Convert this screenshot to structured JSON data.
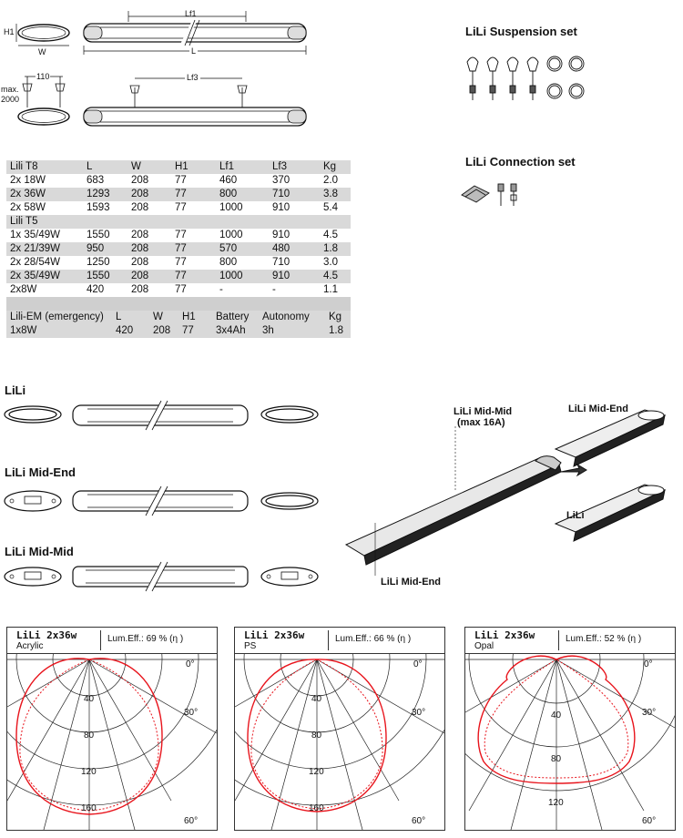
{
  "dimensions": {
    "h1": "H1",
    "w": "W",
    "lf1": "Lf1",
    "l": "L",
    "lf3": "Lf3",
    "spacing": "110",
    "max_label": "max.",
    "max_value": "2000"
  },
  "suspension_set": {
    "title": "LiLi Suspension set"
  },
  "connection_set": {
    "title": "LiLi Connection set"
  },
  "table": {
    "t8_header": [
      "Lili T8",
      "L",
      "W",
      "H1",
      "Lf1",
      "Lf3",
      "Kg"
    ],
    "t8_rows": [
      [
        "2x 18W",
        "683",
        "208",
        "77",
        "460",
        "370",
        "2.0"
      ],
      [
        "2x 36W",
        "1293",
        "208",
        "77",
        "800",
        "710",
        "3.8"
      ],
      [
        "2x 58W",
        "1593",
        "208",
        "77",
        "1000",
        "910",
        "5.4"
      ]
    ],
    "t5_header": "Lili T5",
    "t5_rows": [
      [
        "1x 35/49W",
        "1550",
        "208",
        "77",
        "1000",
        "910",
        "4.5"
      ],
      [
        "2x 21/39W",
        "950",
        "208",
        "77",
        "570",
        "480",
        "1.8"
      ],
      [
        "2x 28/54W",
        "1250",
        "208",
        "77",
        "800",
        "710",
        "3.0"
      ],
      [
        "2x 35/49W",
        "1550",
        "208",
        "77",
        "1000",
        "910",
        "4.5"
      ],
      [
        "2x8W",
        "420",
        "208",
        "77",
        "-",
        "-",
        "1.1"
      ]
    ],
    "em_header": [
      "Lili-EM (emergency)",
      "L",
      "W",
      "H1",
      "Battery",
      "Autonomy",
      "Kg"
    ],
    "em_row": [
      "1x8W",
      "420",
      "208",
      "77",
      "3x4Ah",
      "3h",
      "1.8"
    ]
  },
  "variants": {
    "lili": "LiLi",
    "mid_end": "LiLi Mid-End",
    "mid_mid": "LiLi Mid-Mid"
  },
  "assembly": {
    "mid_mid_label": "LiLi Mid-Mid",
    "mid_mid_note": "(max 16A)",
    "mid_end_top": "LiLi Mid-End",
    "lili": "LiLi",
    "mid_end_bottom": "LiLi Mid-End"
  },
  "photometry": [
    {
      "name": "LiLi 2x36w",
      "material": "Acrylic",
      "efficiency": "Lum.Eff.: 69 % (η )",
      "rings": [
        "40",
        "80",
        "120",
        "160"
      ]
    },
    {
      "name": "LiLi 2x36w",
      "material": "PS",
      "efficiency": "Lum.Eff.: 66 % (η )",
      "rings": [
        "40",
        "80",
        "120",
        "160"
      ]
    },
    {
      "name": "LiLi 2x36w",
      "material": "Opal",
      "efficiency": "Lum.Eff.: 52 % (η )",
      "rings": [
        "40",
        "80",
        "120"
      ]
    }
  ],
  "angles": [
    "0°",
    "30°",
    "60°"
  ],
  "colors": {
    "curve": "#e8141c",
    "grid": "#222222",
    "table_shade": "#d9d9d9"
  }
}
